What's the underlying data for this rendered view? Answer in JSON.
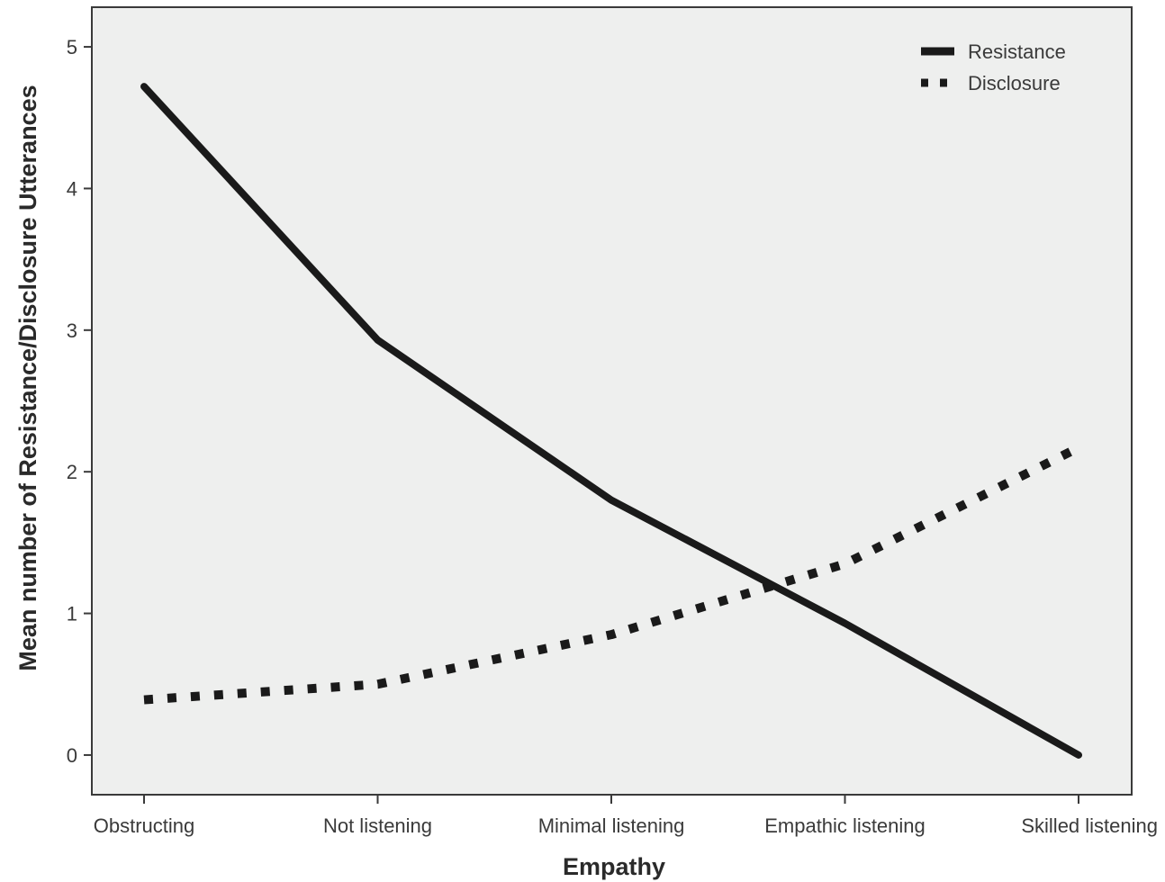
{
  "chart_data": {
    "type": "line",
    "title": "",
    "xlabel": "Empathy",
    "ylabel": "Mean number of Resistance/Disclosure Utterances",
    "categories": [
      "Obstructing",
      "Not listening",
      "Minimal listening",
      "Empathic listening",
      "Skilled listening"
    ],
    "ylim": [
      -0.28,
      5.28
    ],
    "yticks": [
      "0",
      "1",
      "2",
      "3",
      "4",
      "5"
    ],
    "grid": false,
    "legend_position": "top-right",
    "series": [
      {
        "name": "Resistance",
        "style": "solid",
        "color": "#1a1a1a",
        "values": [
          4.72,
          2.93,
          1.8,
          0.93,
          0.0
        ]
      },
      {
        "name": "Disclosure",
        "style": "dotted",
        "color": "#1a1a1a",
        "values": [
          0.39,
          0.5,
          0.85,
          1.35,
          2.17
        ]
      }
    ],
    "colors": {
      "plot_background": "#eeefee",
      "frame": "#3a3a3a",
      "line": "#1a1a1a"
    }
  }
}
